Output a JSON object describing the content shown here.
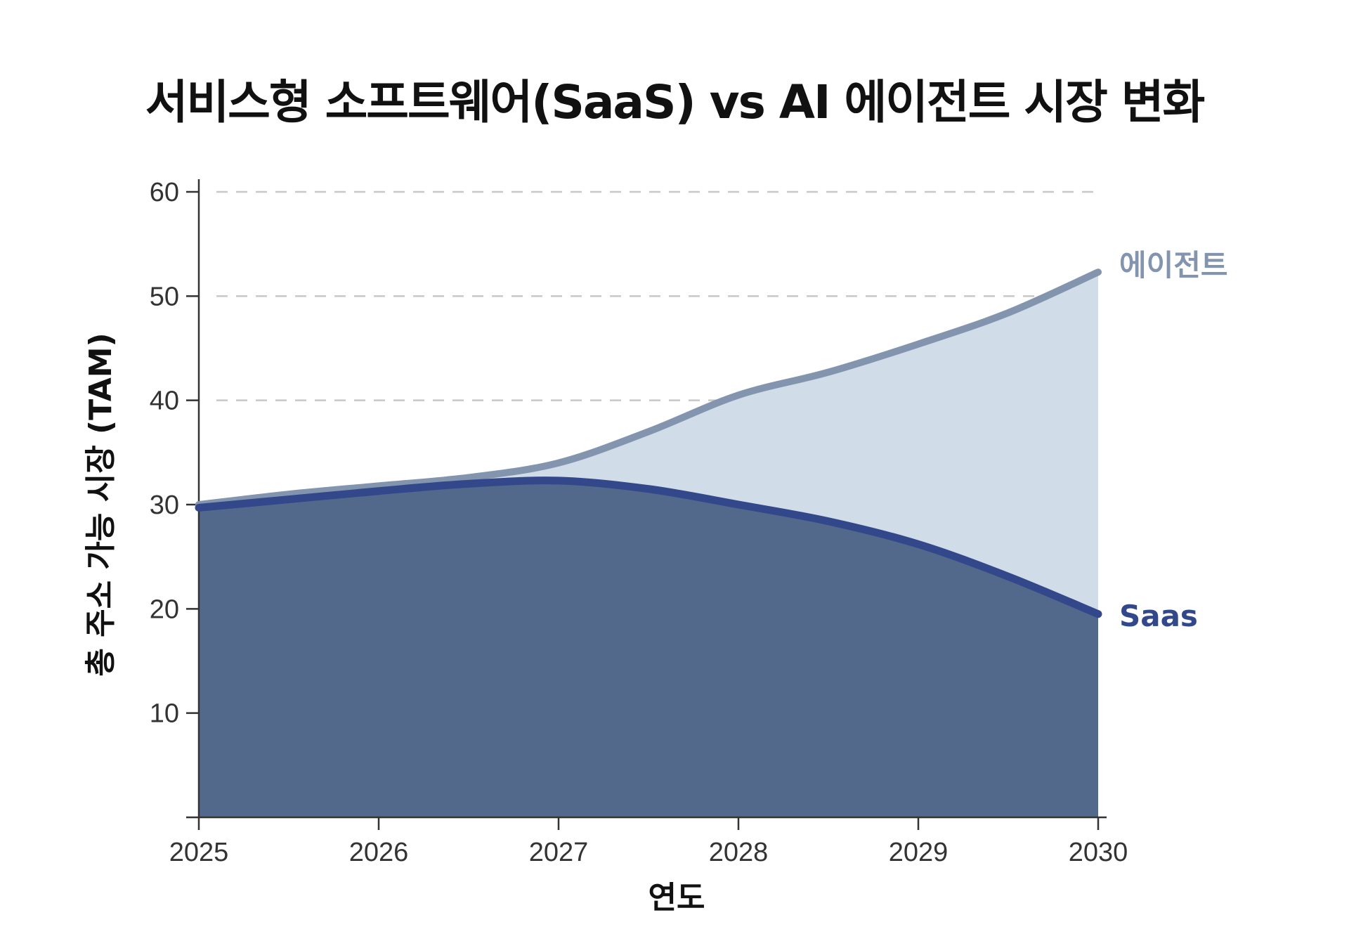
{
  "chart_data": {
    "type": "area",
    "title": "서비스형 소프트웨어(SaaS) vs AI 에이전트 시장 변화",
    "xlabel": "연도",
    "ylabel": "총 주소 가능 시장 (TAM)",
    "xlim": [
      2025,
      2030
    ],
    "ylim": [
      0,
      60
    ],
    "x_ticks": [
      "2025",
      "2026",
      "2027",
      "2028",
      "2029",
      "2030"
    ],
    "y_ticks": [
      "10",
      "20",
      "30",
      "40",
      "50",
      "60"
    ],
    "grid": "horizontal dashed",
    "legend": "inline labels at line ends (right)",
    "x": [
      2025,
      2025.5,
      2026,
      2026.5,
      2027,
      2027.5,
      2028,
      2028.5,
      2029,
      2029.5,
      2030
    ],
    "series": [
      {
        "name": "에이전트",
        "color": "#8294ae",
        "fill": "#d0dce8",
        "values": [
          30,
          31,
          31.8,
          32.6,
          34,
          37,
          40.5,
          42.7,
          45.4,
          48.4,
          52.3
        ]
      },
      {
        "name": "Saas",
        "color": "#33488a",
        "fill": "#52698c",
        "values": [
          29.7,
          30.5,
          31.3,
          32,
          32.3,
          31.5,
          30,
          28.4,
          26.2,
          23.1,
          19.5
        ]
      }
    ]
  }
}
